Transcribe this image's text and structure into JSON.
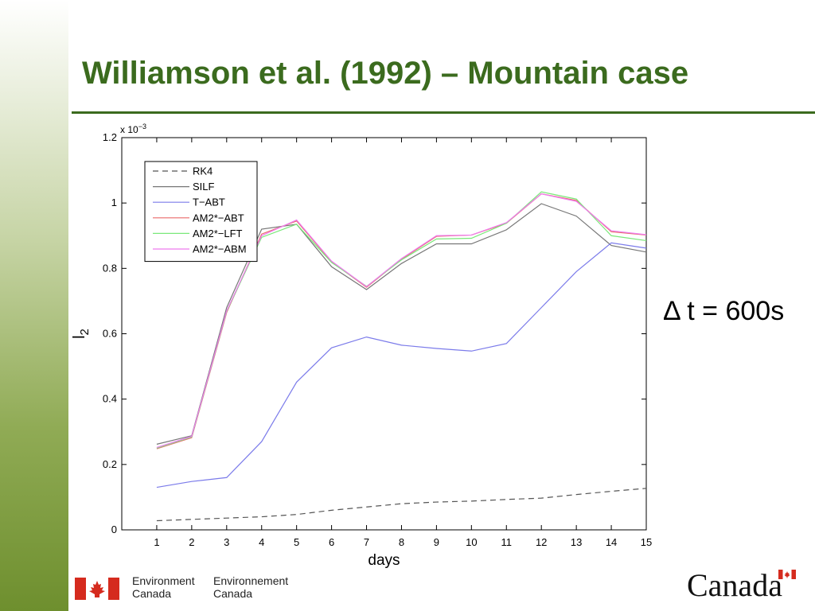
{
  "slide": {
    "title": "Williamson et al. (1992) – Mountain case",
    "annotation": "Δ t = 600s"
  },
  "footer": {
    "dept_en_line1": "Environment",
    "dept_en_line2": "Canada",
    "dept_fr_line1": "Environnement",
    "dept_fr_line2": "Canada",
    "wordmark": "Canada"
  },
  "colors": {
    "title": "#3b6b1e",
    "flag_red": "#d52b1e"
  },
  "chart_data": {
    "type": "line",
    "xlabel": "days",
    "ylabel": "l",
    "ylabel_sub": "2",
    "scale_note": "x 10",
    "scale_exp": "−3",
    "xlim": [
      0,
      15
    ],
    "ylim": [
      0,
      1.2
    ],
    "xticks": [
      "1",
      "2",
      "3",
      "4",
      "5",
      "6",
      "7",
      "8",
      "9",
      "10",
      "11",
      "12",
      "13",
      "14",
      "15"
    ],
    "yticks": [
      "0",
      "0.2",
      "0.4",
      "0.6",
      "0.8",
      "1",
      "1.2"
    ],
    "grid": false,
    "legend_position": "top-left",
    "x": [
      1,
      2,
      3,
      4,
      5,
      6,
      7,
      8,
      9,
      10,
      11,
      12,
      13,
      14,
      15
    ],
    "series": [
      {
        "name": "RK4",
        "color": "#555555",
        "dash": true,
        "values": [
          0.028,
          0.032,
          0.036,
          0.04,
          0.047,
          0.06,
          0.07,
          0.08,
          0.085,
          0.088,
          0.093,
          0.097,
          0.108,
          0.118,
          0.127
        ]
      },
      {
        "name": "SILF",
        "color": "#777777",
        "dash": false,
        "values": [
          0.262,
          0.288,
          0.68,
          0.92,
          0.935,
          0.805,
          0.735,
          0.815,
          0.875,
          0.875,
          0.918,
          0.998,
          0.96,
          0.87,
          0.85
        ]
      },
      {
        "name": "T−ABT",
        "color": "#7b7bea",
        "dash": false,
        "values": [
          0.13,
          0.148,
          0.16,
          0.27,
          0.452,
          0.557,
          0.59,
          0.565,
          0.555,
          0.547,
          0.57,
          0.68,
          0.79,
          0.878,
          0.862
        ]
      },
      {
        "name": "AM2*−ABT",
        "color": "#ea6a6a",
        "dash": false,
        "values": [
          0.248,
          0.282,
          0.665,
          0.905,
          0.945,
          0.82,
          0.742,
          0.828,
          0.898,
          0.902,
          0.938,
          1.028,
          1.008,
          0.912,
          0.902
        ]
      },
      {
        "name": "AM2*−LFT",
        "color": "#7ae87a",
        "dash": false,
        "values": [
          0.25,
          0.284,
          0.668,
          0.895,
          0.935,
          0.818,
          0.745,
          0.826,
          0.89,
          0.892,
          0.938,
          1.034,
          1.012,
          0.9,
          0.885
        ]
      },
      {
        "name": "AM2*−ABM",
        "color": "#ee7aee",
        "dash": false,
        "values": [
          0.252,
          0.286,
          0.67,
          0.9,
          0.948,
          0.822,
          0.744,
          0.83,
          0.9,
          0.902,
          0.94,
          1.028,
          1.005,
          0.915,
          0.903
        ]
      }
    ]
  }
}
